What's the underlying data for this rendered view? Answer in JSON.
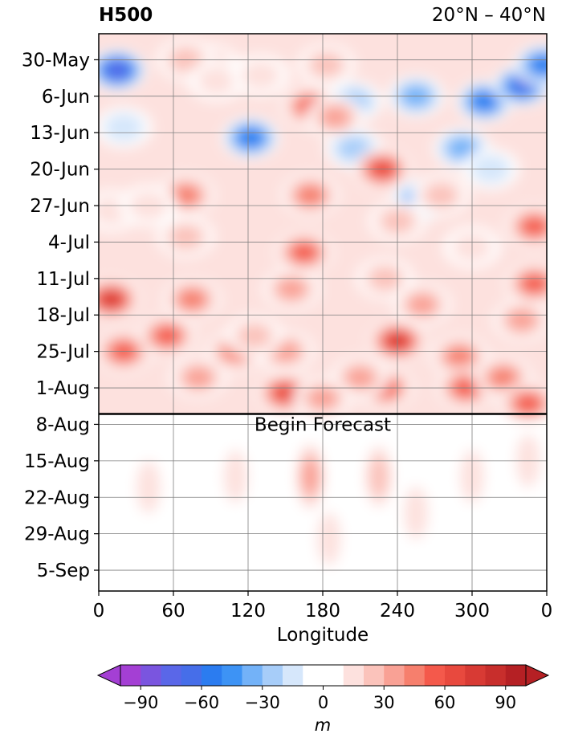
{
  "chart_data": {
    "type": "heatmap",
    "title": "H500",
    "region": "20°N – 40°N",
    "xlabel": "Longitude",
    "x_ticks": [
      "0",
      "60",
      "120",
      "180",
      "240",
      "300",
      "0"
    ],
    "x_tick_values": [
      0,
      60,
      120,
      180,
      240,
      300,
      360
    ],
    "xlim": [
      0,
      360
    ],
    "y_ticks": [
      "30-May",
      "6-Jun",
      "13-Jun",
      "20-Jun",
      "27-Jun",
      "4-Jul",
      "11-Jul",
      "18-Jul",
      "25-Jul",
      "1-Aug",
      "8-Aug",
      "15-Aug",
      "22-Aug",
      "29-Aug",
      "5-Sep"
    ],
    "ylim": [
      "2025-05-25",
      "2025-09-09"
    ],
    "y_axis_direction": "time increases downward",
    "annotation": "Begin Forecast",
    "forecast_start": "2025-08-06",
    "grid": true,
    "colorbar": {
      "label": "m",
      "ticks": [
        -90,
        -60,
        -30,
        0,
        30,
        60,
        90
      ],
      "levels": [
        -100,
        -90,
        -80,
        -70,
        -60,
        -50,
        -40,
        -30,
        -20,
        -10,
        10,
        20,
        30,
        40,
        50,
        60,
        70,
        80,
        90,
        100
      ],
      "colors": [
        "#a43fd4",
        "#7a55df",
        "#5a67e8",
        "#466ee9",
        "#2b7cf0",
        "#3d93f5",
        "#73b2f8",
        "#a7cdf9",
        "#d6e7fb",
        "#ffffff",
        "#fde1de",
        "#fbc3bb",
        "#f9a195",
        "#f67f6d",
        "#f4594b",
        "#e8493e",
        "#d83a34",
        "#c82e2c",
        "#b52024"
      ],
      "extend": "both"
    },
    "features": [
      {
        "lon": 15,
        "date": "2025-06-01",
        "value": -75
      },
      {
        "lon": 255,
        "date": "2025-06-06",
        "value": -42
      },
      {
        "lon": 310,
        "date": "2025-06-07",
        "value": -60
      },
      {
        "lon": 340,
        "date": "2025-06-04",
        "value": -72
      },
      {
        "lon": 357,
        "date": "2025-05-31",
        "value": -55
      },
      {
        "lon": 292,
        "date": "2025-06-16",
        "value": -35
      },
      {
        "lon": 258,
        "date": "2025-06-26",
        "value": -45
      },
      {
        "lon": 205,
        "date": "2025-06-07",
        "value": -25
      },
      {
        "lon": 205,
        "date": "2025-06-16",
        "value": -30
      },
      {
        "lon": 122,
        "date": "2025-06-14",
        "value": -55
      },
      {
        "lon": 228,
        "date": "2025-06-20",
        "value": 70
      },
      {
        "lon": 170,
        "date": "2025-06-08",
        "value": 58
      },
      {
        "lon": 190,
        "date": "2025-06-10",
        "value": 40
      },
      {
        "lon": 183,
        "date": "2025-05-31",
        "value": 28
      },
      {
        "lon": 90,
        "date": "2025-05-31",
        "value": 30
      },
      {
        "lon": 70,
        "date": "2025-05-30",
        "value": 25
      },
      {
        "lon": 275,
        "date": "2025-06-25",
        "value": 28
      },
      {
        "lon": 95,
        "date": "2025-06-03",
        "value": 20
      },
      {
        "lon": 130,
        "date": "2025-06-02",
        "value": 20
      },
      {
        "lon": 165,
        "date": "2025-07-06",
        "value": 60
      },
      {
        "lon": 170,
        "date": "2025-06-25",
        "value": 50
      },
      {
        "lon": 155,
        "date": "2025-07-13",
        "value": 40
      },
      {
        "lon": 150,
        "date": "2025-07-25",
        "value": 40
      },
      {
        "lon": 70,
        "date": "2025-06-25",
        "value": 45
      },
      {
        "lon": 70,
        "date": "2025-07-03",
        "value": 30
      },
      {
        "lon": 10,
        "date": "2025-06-28",
        "value": 20
      },
      {
        "lon": 40,
        "date": "2025-06-27",
        "value": 20
      },
      {
        "lon": 10,
        "date": "2025-07-15",
        "value": 80
      },
      {
        "lon": 20,
        "date": "2025-07-25",
        "value": 62
      },
      {
        "lon": 55,
        "date": "2025-07-22",
        "value": 55
      },
      {
        "lon": 75,
        "date": "2025-07-15",
        "value": 50
      },
      {
        "lon": 80,
        "date": "2025-07-30",
        "value": 40
      },
      {
        "lon": 110,
        "date": "2025-07-25",
        "value": 45
      },
      {
        "lon": 240,
        "date": "2025-07-23",
        "value": 82
      },
      {
        "lon": 230,
        "date": "2025-08-01",
        "value": 55
      },
      {
        "lon": 210,
        "date": "2025-07-30",
        "value": 40
      },
      {
        "lon": 260,
        "date": "2025-07-16",
        "value": 40
      },
      {
        "lon": 230,
        "date": "2025-07-11",
        "value": 25
      },
      {
        "lon": 290,
        "date": "2025-07-26",
        "value": 45
      },
      {
        "lon": 295,
        "date": "2025-08-01",
        "value": 55
      },
      {
        "lon": 325,
        "date": "2025-07-30",
        "value": 50
      },
      {
        "lon": 340,
        "date": "2025-07-19",
        "value": 40
      },
      {
        "lon": 350,
        "date": "2025-07-12",
        "value": 62
      },
      {
        "lon": 350,
        "date": "2025-07-01",
        "value": 55
      },
      {
        "lon": 345,
        "date": "2025-08-04",
        "value": 55
      },
      {
        "lon": 150,
        "date": "2025-08-02",
        "value": 72
      },
      {
        "lon": 180,
        "date": "2025-08-03",
        "value": 40
      },
      {
        "lon": 125,
        "date": "2025-07-22",
        "value": 30
      },
      {
        "lon": 315,
        "date": "2025-06-20",
        "value": -20
      },
      {
        "lon": 20,
        "date": "2025-06-12",
        "value": -15
      },
      {
        "lon": 240,
        "date": "2025-06-30",
        "value": 25
      },
      {
        "lon": 300,
        "date": "2025-07-05",
        "value": 20
      },
      {
        "lon": 170,
        "date": "2025-08-18",
        "value": 40
      },
      {
        "lon": 225,
        "date": "2025-08-18",
        "value": 25
      },
      {
        "lon": 255,
        "date": "2025-08-25",
        "value": 22
      },
      {
        "lon": 40,
        "date": "2025-08-20",
        "value": 15
      },
      {
        "lon": 110,
        "date": "2025-08-18",
        "value": 15
      },
      {
        "lon": 300,
        "date": "2025-08-18",
        "value": 15
      },
      {
        "lon": 345,
        "date": "2025-08-15",
        "value": 15
      },
      {
        "lon": 185,
        "date": "2025-08-30",
        "value": 15
      }
    ]
  }
}
